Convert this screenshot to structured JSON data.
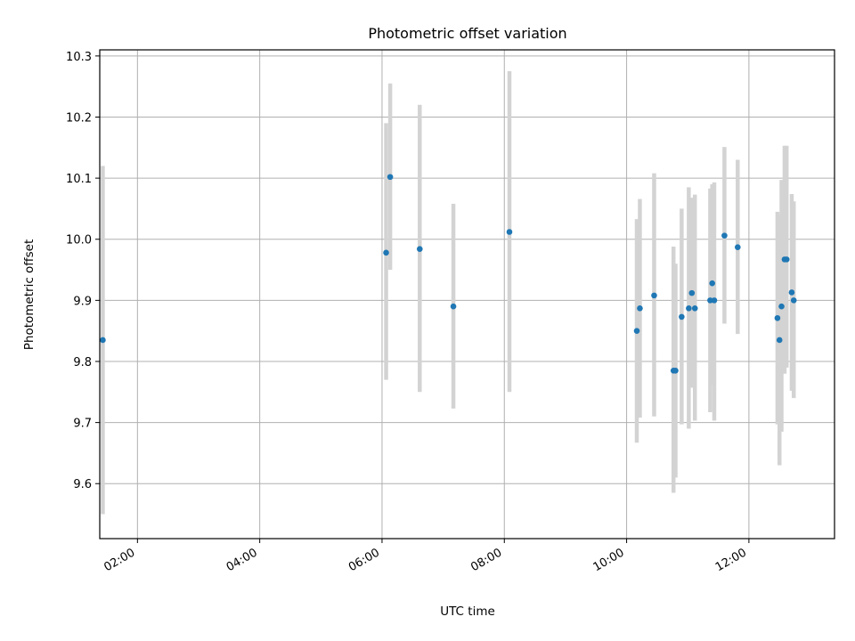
{
  "chart_data": {
    "type": "scatter",
    "title": "Photometric offset variation",
    "xlabel": "UTC time",
    "ylabel": "Photometric offset",
    "x_axis_kind": "time",
    "xlim": [
      "01:23",
      "13:24"
    ],
    "ylim": [
      9.51,
      10.31
    ],
    "x_ticks": [
      "02:00",
      "04:00",
      "06:00",
      "08:00",
      "10:00",
      "12:00"
    ],
    "y_ticks": [
      9.6,
      9.7,
      9.8,
      9.9,
      10.0,
      10.1,
      10.2,
      10.3
    ],
    "grid": true,
    "colors": {
      "point": "#1f77b4",
      "error_bar": "#d3d3d3",
      "grid": "#b0b0b0"
    },
    "points": [
      {
        "x": "01:26",
        "y": 9.835,
        "yerr_low": 9.55,
        "yerr_high": 10.12
      },
      {
        "x": "06:04",
        "y": 9.978,
        "yerr_low": 9.77,
        "yerr_high": 10.19
      },
      {
        "x": "06:08",
        "y": 10.102,
        "yerr_low": 9.95,
        "yerr_high": 10.255
      },
      {
        "x": "06:37",
        "y": 9.984,
        "yerr_low": 9.75,
        "yerr_high": 10.22
      },
      {
        "x": "07:10",
        "y": 9.89,
        "yerr_low": 9.723,
        "yerr_high": 10.058
      },
      {
        "x": "08:05",
        "y": 10.012,
        "yerr_low": 9.75,
        "yerr_high": 10.275
      },
      {
        "x": "10:10",
        "y": 9.85,
        "yerr_low": 9.667,
        "yerr_high": 10.033
      },
      {
        "x": "10:13",
        "y": 9.887,
        "yerr_low": 9.708,
        "yerr_high": 10.066
      },
      {
        "x": "10:27",
        "y": 9.908,
        "yerr_low": 9.71,
        "yerr_high": 10.108
      },
      {
        "x": "10:46",
        "y": 9.785,
        "yerr_low": 9.585,
        "yerr_high": 9.988
      },
      {
        "x": "10:48",
        "y": 9.785,
        "yerr_low": 9.61,
        "yerr_high": 9.96
      },
      {
        "x": "10:54",
        "y": 9.873,
        "yerr_low": 9.697,
        "yerr_high": 10.05
      },
      {
        "x": "11:01",
        "y": 9.887,
        "yerr_low": 9.69,
        "yerr_high": 10.085
      },
      {
        "x": "11:04",
        "y": 9.912,
        "yerr_low": 9.757,
        "yerr_high": 10.068
      },
      {
        "x": "11:07",
        "y": 9.887,
        "yerr_low": 9.703,
        "yerr_high": 10.073
      },
      {
        "x": "11:22",
        "y": 9.9,
        "yerr_low": 9.717,
        "yerr_high": 10.083
      },
      {
        "x": "11:24",
        "y": 9.928,
        "yerr_low": 9.762,
        "yerr_high": 10.09
      },
      {
        "x": "11:26",
        "y": 9.9,
        "yerr_low": 9.703,
        "yerr_high": 10.093
      },
      {
        "x": "11:36",
        "y": 10.006,
        "yerr_low": 9.862,
        "yerr_high": 10.151
      },
      {
        "x": "11:49",
        "y": 9.987,
        "yerr_low": 9.845,
        "yerr_high": 10.13
      },
      {
        "x": "12:28",
        "y": 9.871,
        "yerr_low": 9.697,
        "yerr_high": 10.045
      },
      {
        "x": "12:30",
        "y": 9.835,
        "yerr_low": 9.63,
        "yerr_high": 10.04
      },
      {
        "x": "12:32",
        "y": 9.89,
        "yerr_low": 9.685,
        "yerr_high": 10.097
      },
      {
        "x": "12:35",
        "y": 9.967,
        "yerr_low": 9.78,
        "yerr_high": 10.153
      },
      {
        "x": "12:37",
        "y": 9.967,
        "yerr_low": 9.79,
        "yerr_high": 10.153
      },
      {
        "x": "12:42",
        "y": 9.913,
        "yerr_low": 9.752,
        "yerr_high": 10.074
      },
      {
        "x": "12:44",
        "y": 9.9,
        "yerr_low": 9.74,
        "yerr_high": 10.062
      }
    ]
  }
}
